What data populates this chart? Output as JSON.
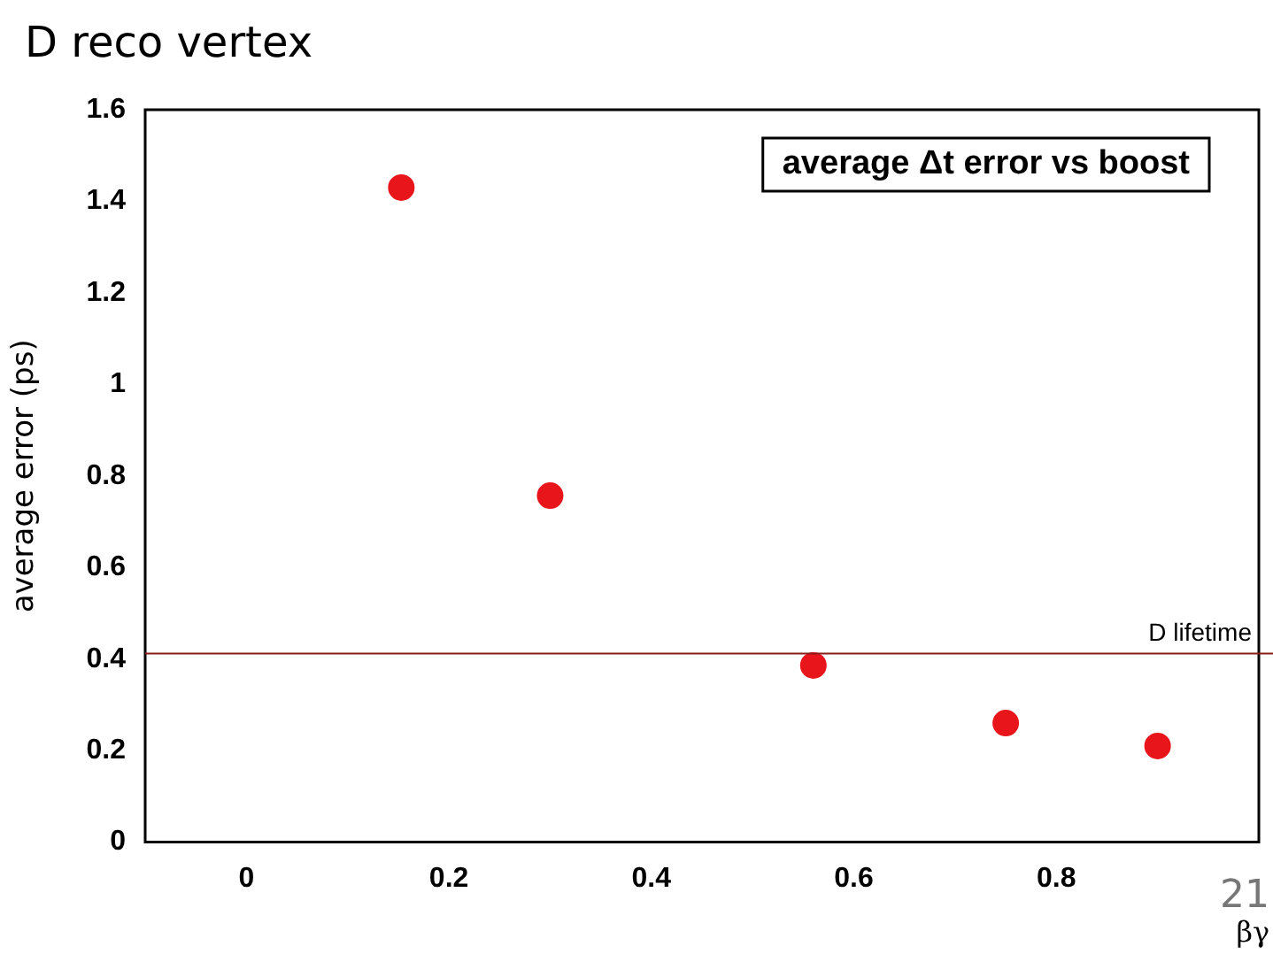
{
  "chart_data": {
    "type": "scatter",
    "title": "D reco vertex",
    "subtitle": "average Δt error vs boost",
    "xlabel": "βγ",
    "ylabel": "average error (ps)",
    "x": [
      0.153,
      0.3,
      0.56,
      0.75,
      0.9
    ],
    "values": [
      1.43,
      0.757,
      0.386,
      0.26,
      0.21
    ],
    "color": "#e8161b",
    "marker": "circle",
    "xlim": [
      -0.1,
      1.0
    ],
    "xticks": [
      0,
      0.2,
      0.4,
      0.6,
      0.8
    ],
    "ylim": [
      0,
      1.6
    ],
    "yticks": [
      0,
      0.2,
      0.4,
      0.6,
      0.8,
      1,
      1.2,
      1.4,
      1.6
    ],
    "ref_lines": [
      {
        "axis": "y",
        "value": 0.412,
        "label": "D lifetime",
        "color": "#8b1a1a"
      }
    ],
    "annotations": [
      "21"
    ],
    "grid": false,
    "legend": false
  }
}
